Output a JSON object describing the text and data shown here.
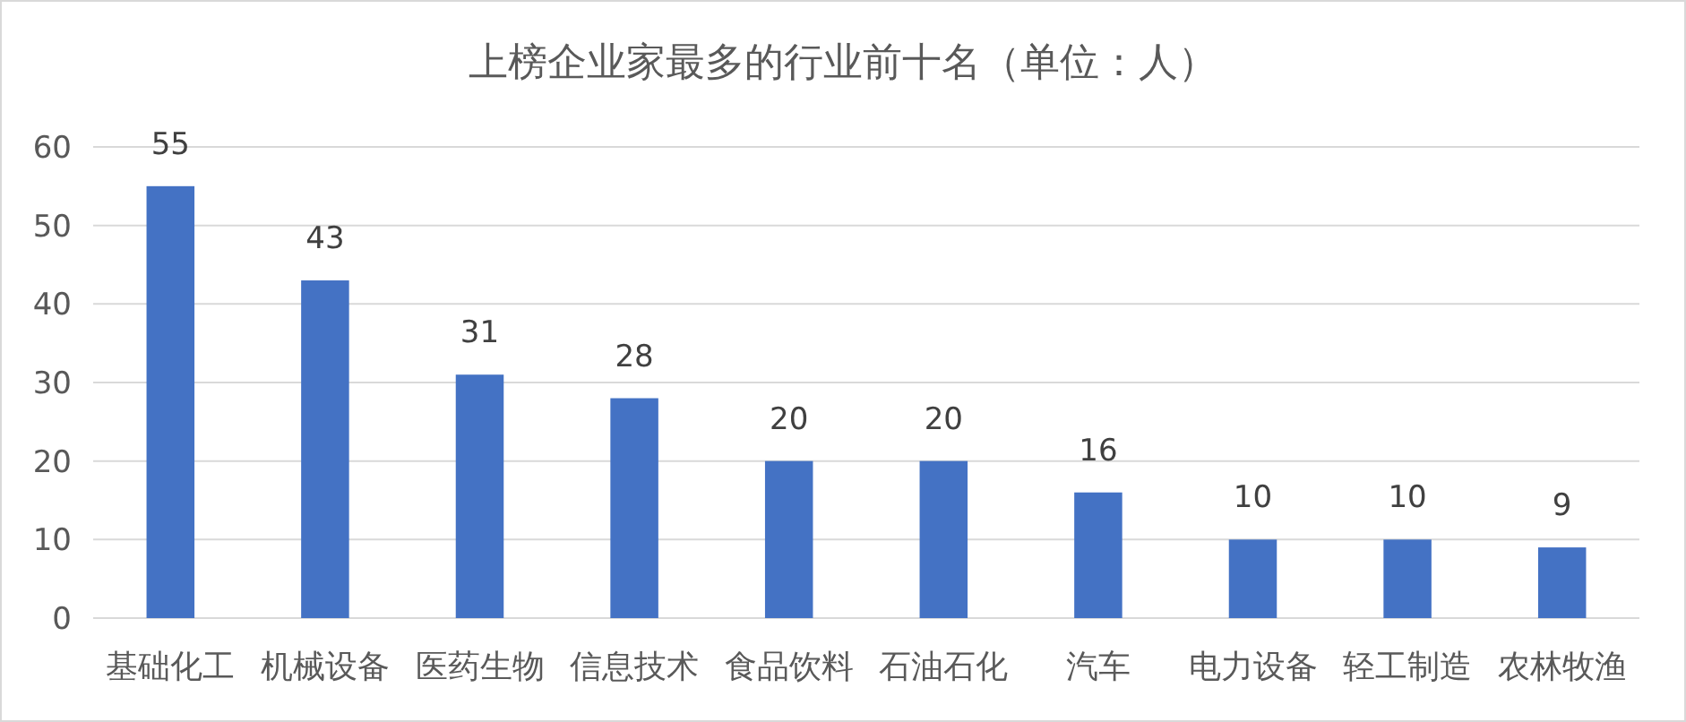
{
  "chart_data": {
    "type": "bar",
    "title": "上榜企业家最多的行业前十名（单位：人）",
    "categories": [
      "基础化工",
      "机械设备",
      "医药生物",
      "信息技术",
      "食品饮料",
      "石油石化",
      "汽车",
      "电力设备",
      "轻工制造",
      "农林牧渔"
    ],
    "values": [
      55,
      43,
      31,
      28,
      20,
      20,
      16,
      10,
      10,
      9
    ],
    "color": "#4472c4",
    "ylim": [
      0,
      60
    ],
    "yticks": [
      0,
      10,
      20,
      30,
      40,
      50,
      60
    ],
    "grid": "y",
    "data_labels": true
  }
}
